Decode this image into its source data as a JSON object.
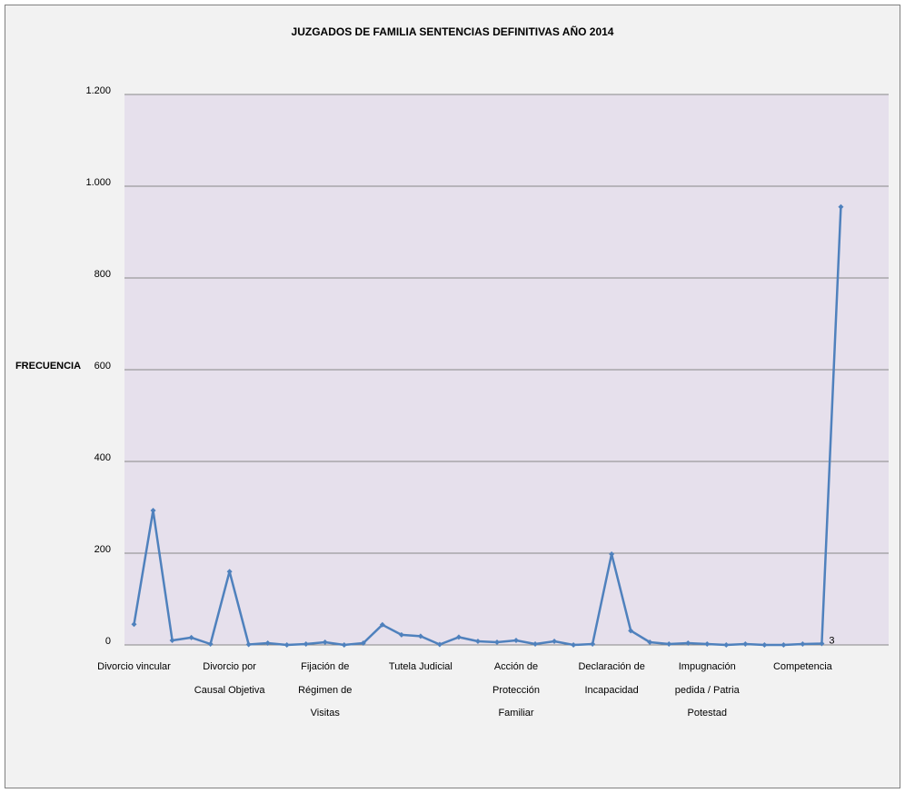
{
  "chart_data": {
    "type": "line",
    "title": "JUZGADOS DE FAMILIA SENTENCIAS DEFINITIVAS AÑO 2014",
    "y_label": "FRECUENCIA",
    "categories": [
      "Divorcio vincular",
      null,
      null,
      null,
      null,
      "Divorcio por Causal Objetiva",
      null,
      null,
      null,
      null,
      "Fijación de Régimen de Visitas",
      null,
      null,
      null,
      null,
      "Tutela Judicial",
      null,
      null,
      null,
      null,
      "Acción de Protección Familiar",
      null,
      null,
      null,
      null,
      "Declaración de Incapacidad",
      null,
      null,
      null,
      null,
      "Impugnación pedida / Patria Potestad",
      null,
      null,
      null,
      null,
      "Competencia",
      null,
      null,
      null,
      null
    ],
    "series": [
      {
        "name": "FRECUENCIA",
        "color": "#4f81bd",
        "values": [
          45,
          293,
          10,
          16,
          2,
          160,
          1,
          4,
          0,
          2,
          6,
          0,
          4,
          44,
          22,
          19,
          1,
          17,
          8,
          6,
          10,
          2,
          8,
          0,
          2,
          198,
          31,
          6,
          2,
          4,
          2,
          0,
          2,
          0,
          0,
          2,
          3,
          955,
          null,
          null
        ],
        "value_labels": [
          null,
          null,
          null,
          null,
          null,
          null,
          null,
          null,
          null,
          null,
          null,
          null,
          null,
          null,
          null,
          null,
          null,
          null,
          null,
          null,
          null,
          null,
          null,
          null,
          null,
          null,
          null,
          null,
          null,
          null,
          null,
          null,
          null,
          null,
          null,
          null,
          "3",
          null,
          null,
          null
        ]
      }
    ],
    "ylim": [
      0,
      1200
    ],
    "yticks": [
      0,
      200,
      400,
      600,
      800,
      {
        "value": 1000,
        "label": "1.000"
      },
      {
        "value": 1200,
        "label": "1.200"
      }
    ],
    "grid": true,
    "plot_color": "#e6e0ec",
    "background": "#f2f2f2"
  }
}
